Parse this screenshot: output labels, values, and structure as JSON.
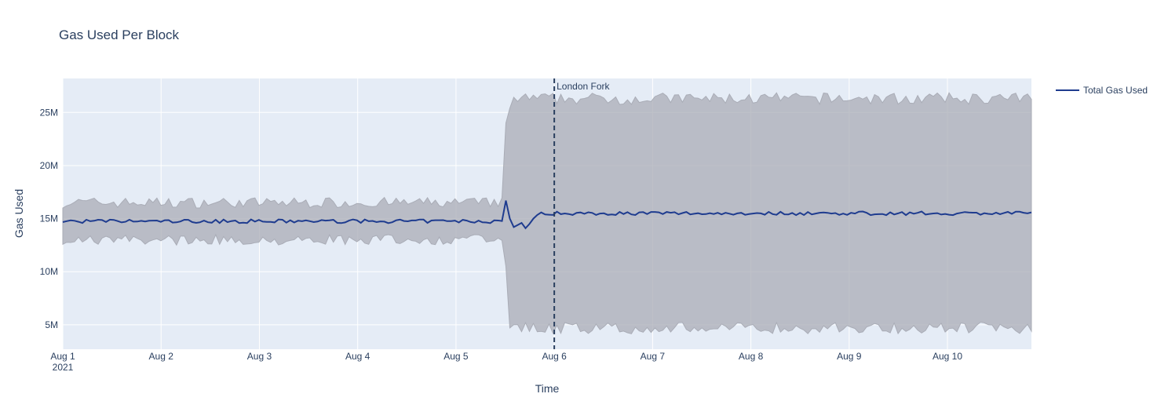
{
  "chart_data": {
    "type": "line",
    "title": "Gas Used Per Block",
    "xlabel": "Time",
    "ylabel": "Gas Used",
    "x_range": [
      "2021-08-01",
      "2021-08-10T20:30"
    ],
    "ylim": [
      2700000,
      28200000
    ],
    "x_ticks": [
      "Aug 1",
      "Aug 2",
      "Aug 3",
      "Aug 4",
      "Aug 5",
      "Aug 6",
      "Aug 7",
      "Aug 8",
      "Aug 9",
      "Aug 10"
    ],
    "x_tick_year": "2021",
    "y_ticks": [
      5000000,
      10000000,
      15000000,
      20000000,
      25000000
    ],
    "y_tick_labels": [
      "5M",
      "10M",
      "15M",
      "20M",
      "25M"
    ],
    "legend": {
      "position": "top-right",
      "entries": [
        "Total Gas Used"
      ]
    },
    "colors": {
      "line": "#1f3c8f",
      "band": "#a9acb6",
      "plot_bg": "#e5ecf6",
      "vline": "#2a3f5f"
    },
    "grid": true,
    "annotations": [
      {
        "text": "London Fork",
        "x": "2021-08-06"
      }
    ],
    "segments": [
      {
        "start": "2021-08-01",
        "end": "2021-08-05T12:00",
        "mean": 14750000,
        "upper": 16500000,
        "lower": 13000000
      },
      {
        "start": "2021-08-05T12:00",
        "end": "2021-08-10T20:30",
        "mean": 15500000,
        "upper": 26300000,
        "lower": 4700000
      }
    ],
    "series": [
      {
        "name": "Total Gas Used",
        "values_description": "mean ~14.8M before Aug 5 12:00, spike to 16.7M at transition, dip to 14.2M, ~15.5M after"
      }
    ]
  }
}
